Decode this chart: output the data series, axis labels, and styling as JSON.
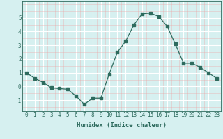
{
  "x": [
    0,
    1,
    2,
    3,
    4,
    5,
    6,
    7,
    8,
    9,
    10,
    11,
    12,
    13,
    14,
    15,
    16,
    17,
    18,
    19,
    20,
    21,
    22,
    23
  ],
  "y": [
    1.0,
    0.6,
    0.3,
    -0.1,
    -0.15,
    -0.2,
    -0.7,
    -1.3,
    -0.85,
    -0.85,
    0.9,
    2.5,
    3.3,
    4.5,
    5.3,
    5.35,
    5.1,
    4.4,
    3.1,
    1.7,
    1.7,
    1.4,
    1.0,
    0.6
  ],
  "xlabel": "Humidex (Indice chaleur)",
  "ylabel": "",
  "xlim": [
    -0.5,
    23.5
  ],
  "ylim": [
    -1.8,
    6.2
  ],
  "yticks": [
    -1,
    0,
    1,
    2,
    3,
    4,
    5
  ],
  "xticks": [
    0,
    1,
    2,
    3,
    4,
    5,
    6,
    7,
    8,
    9,
    10,
    11,
    12,
    13,
    14,
    15,
    16,
    17,
    18,
    19,
    20,
    21,
    22,
    23
  ],
  "line_color": "#2e6b5e",
  "marker": "s",
  "marker_size": 2.5,
  "bg_color": "#d6f0f0",
  "grid_color": "#ffffff",
  "grid_minor_color": "#e8f8f8",
  "xlabel_fontsize": 6.5,
  "tick_fontsize": 5.5,
  "tick_color": "#2e6b5e"
}
